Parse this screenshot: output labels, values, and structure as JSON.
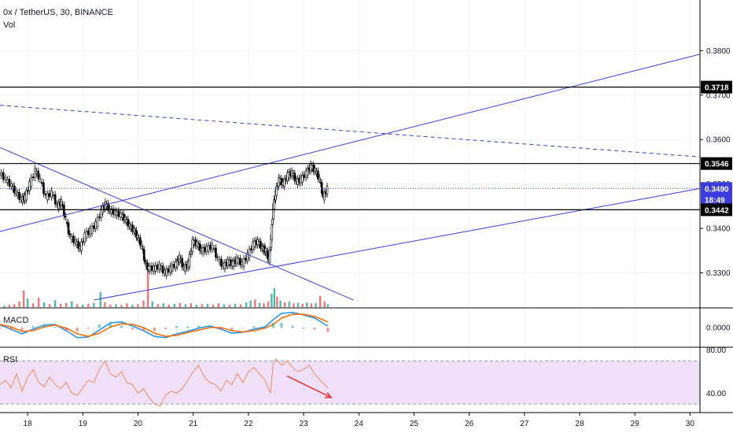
{
  "header": {
    "title": "0x / TetherUS, 30, BINANCE",
    "volume_label": "Vol"
  },
  "panes": {
    "macd_label": "MACD",
    "rsi_label": "RSI"
  },
  "colors": {
    "up": "#26a69a",
    "down": "#ef5350",
    "candle": "#000000",
    "trendline": "#3c3cdc",
    "macd_line": "#2196f3",
    "signal_line": "#ff6d00",
    "rsi_line": "#f08a5d",
    "rsi_band": "#efe0f7",
    "arrow": "#e53935",
    "grid": "#f0f3fa"
  },
  "chart_data": [
    {
      "type": "candlestick",
      "title": "0x / TetherUS, 30, BINANCE",
      "x_ticks": [
        "18",
        "19",
        "20",
        "21",
        "22",
        "23",
        "24",
        "25",
        "26",
        "27",
        "28",
        "29",
        "30"
      ],
      "x_range": [
        17.5,
        30.18
      ],
      "y_ticks": [
        "0.3300",
        "0.3400",
        "0.3500",
        "0.3600",
        "0.3700",
        "0.3800"
      ],
      "ylim": [
        0.3223,
        0.3914
      ],
      "grid": true,
      "price_marks": [
        {
          "label": "0.3718",
          "value": 0.3718,
          "style": "horizontal-line"
        },
        {
          "label": "0.3546",
          "value": 0.3546,
          "style": "horizontal-line"
        },
        {
          "label": "0.3490",
          "value": 0.349,
          "style": "last-price"
        },
        {
          "label": "18:49",
          "value": 0.3465,
          "style": "countdown"
        },
        {
          "label": "0.3442",
          "value": 0.3442,
          "style": "horizontal-line"
        }
      ],
      "close_series": [
        {
          "x": 17.5,
          "y": 0.3525
        },
        {
          "x": 17.62,
          "y": 0.351
        },
        {
          "x": 17.72,
          "y": 0.3495
        },
        {
          "x": 17.8,
          "y": 0.348
        },
        {
          "x": 17.9,
          "y": 0.3465
        },
        {
          "x": 17.96,
          "y": 0.347
        },
        {
          "x": 18.05,
          "y": 0.35
        },
        {
          "x": 18.15,
          "y": 0.353
        },
        {
          "x": 18.24,
          "y": 0.351
        },
        {
          "x": 18.34,
          "y": 0.347
        },
        {
          "x": 18.45,
          "y": 0.348
        },
        {
          "x": 18.55,
          "y": 0.345
        },
        {
          "x": 18.62,
          "y": 0.346
        },
        {
          "x": 18.7,
          "y": 0.342
        },
        {
          "x": 18.78,
          "y": 0.338
        },
        {
          "x": 18.88,
          "y": 0.337
        },
        {
          "x": 18.96,
          "y": 0.3355
        },
        {
          "x": 19.05,
          "y": 0.3385
        },
        {
          "x": 19.15,
          "y": 0.3395
        },
        {
          "x": 19.25,
          "y": 0.341
        },
        {
          "x": 19.35,
          "y": 0.344
        },
        {
          "x": 19.42,
          "y": 0.3455
        },
        {
          "x": 19.5,
          "y": 0.344
        },
        {
          "x": 19.6,
          "y": 0.3435
        },
        {
          "x": 19.7,
          "y": 0.343
        },
        {
          "x": 19.78,
          "y": 0.342
        },
        {
          "x": 19.86,
          "y": 0.3405
        },
        {
          "x": 19.94,
          "y": 0.3395
        },
        {
          "x": 20.0,
          "y": 0.338
        },
        {
          "x": 20.08,
          "y": 0.336
        },
        {
          "x": 20.14,
          "y": 0.332
        },
        {
          "x": 20.2,
          "y": 0.331
        },
        {
          "x": 20.3,
          "y": 0.331
        },
        {
          "x": 20.4,
          "y": 0.3315
        },
        {
          "x": 20.5,
          "y": 0.33
        },
        {
          "x": 20.6,
          "y": 0.331
        },
        {
          "x": 20.7,
          "y": 0.332
        },
        {
          "x": 20.76,
          "y": 0.3335
        },
        {
          "x": 20.84,
          "y": 0.331
        },
        {
          "x": 20.92,
          "y": 0.332
        },
        {
          "x": 21.0,
          "y": 0.337
        },
        {
          "x": 21.08,
          "y": 0.3365
        },
        {
          "x": 21.16,
          "y": 0.335
        },
        {
          "x": 21.26,
          "y": 0.3355
        },
        {
          "x": 21.36,
          "y": 0.336
        },
        {
          "x": 21.46,
          "y": 0.333
        },
        {
          "x": 21.56,
          "y": 0.3315
        },
        {
          "x": 21.64,
          "y": 0.3325
        },
        {
          "x": 21.72,
          "y": 0.332
        },
        {
          "x": 21.8,
          "y": 0.333
        },
        {
          "x": 21.9,
          "y": 0.332
        },
        {
          "x": 22.0,
          "y": 0.334
        },
        {
          "x": 22.1,
          "y": 0.3365
        },
        {
          "x": 22.18,
          "y": 0.337
        },
        {
          "x": 22.26,
          "y": 0.3355
        },
        {
          "x": 22.32,
          "y": 0.335
        },
        {
          "x": 22.38,
          "y": 0.333
        },
        {
          "x": 22.42,
          "y": 0.338
        },
        {
          "x": 22.46,
          "y": 0.345
        },
        {
          "x": 22.5,
          "y": 0.348
        },
        {
          "x": 22.56,
          "y": 0.351
        },
        {
          "x": 22.64,
          "y": 0.35
        },
        {
          "x": 22.72,
          "y": 0.352
        },
        {
          "x": 22.8,
          "y": 0.3525
        },
        {
          "x": 22.88,
          "y": 0.3505
        },
        {
          "x": 22.96,
          "y": 0.351
        },
        {
          "x": 23.06,
          "y": 0.3525
        },
        {
          "x": 23.14,
          "y": 0.354
        },
        {
          "x": 23.22,
          "y": 0.353
        },
        {
          "x": 23.3,
          "y": 0.351
        },
        {
          "x": 23.36,
          "y": 0.347
        },
        {
          "x": 23.44,
          "y": 0.349
        }
      ],
      "volume_bars": [
        {
          "x": 17.58,
          "v": 3,
          "up": true
        },
        {
          "x": 17.67,
          "v": 5,
          "up": false
        },
        {
          "x": 17.76,
          "v": 6,
          "up": false
        },
        {
          "x": 17.85,
          "v": 12,
          "up": false
        },
        {
          "x": 17.93,
          "v": 35,
          "up": false
        },
        {
          "x": 18.0,
          "v": 18,
          "up": true
        },
        {
          "x": 18.1,
          "v": 8,
          "up": false
        },
        {
          "x": 18.2,
          "v": 20,
          "up": false
        },
        {
          "x": 18.3,
          "v": 10,
          "up": true
        },
        {
          "x": 18.4,
          "v": 6,
          "up": false
        },
        {
          "x": 18.5,
          "v": 15,
          "up": true
        },
        {
          "x": 18.6,
          "v": 7,
          "up": false
        },
        {
          "x": 18.7,
          "v": 9,
          "up": false
        },
        {
          "x": 18.8,
          "v": 12,
          "up": true
        },
        {
          "x": 18.9,
          "v": 6,
          "up": false
        },
        {
          "x": 19.0,
          "v": 5,
          "up": true
        },
        {
          "x": 19.1,
          "v": 7,
          "up": false
        },
        {
          "x": 19.2,
          "v": 9,
          "up": true
        },
        {
          "x": 19.32,
          "v": 32,
          "up": true
        },
        {
          "x": 19.4,
          "v": 10,
          "up": false
        },
        {
          "x": 19.5,
          "v": 5,
          "up": false
        },
        {
          "x": 19.6,
          "v": 6,
          "up": true
        },
        {
          "x": 19.7,
          "v": 4,
          "up": false
        },
        {
          "x": 19.8,
          "v": 8,
          "up": false
        },
        {
          "x": 19.9,
          "v": 5,
          "up": true
        },
        {
          "x": 20.0,
          "v": 6,
          "up": false
        },
        {
          "x": 20.1,
          "v": 14,
          "up": false
        },
        {
          "x": 20.18,
          "v": 72,
          "up": false
        },
        {
          "x": 20.26,
          "v": 12,
          "up": true
        },
        {
          "x": 20.36,
          "v": 6,
          "up": false
        },
        {
          "x": 20.46,
          "v": 8,
          "up": true
        },
        {
          "x": 20.56,
          "v": 5,
          "up": false
        },
        {
          "x": 20.66,
          "v": 7,
          "up": true
        },
        {
          "x": 20.76,
          "v": 9,
          "up": false
        },
        {
          "x": 20.86,
          "v": 6,
          "up": true
        },
        {
          "x": 20.96,
          "v": 8,
          "up": false
        },
        {
          "x": 21.06,
          "v": 5,
          "up": true
        },
        {
          "x": 21.16,
          "v": 6,
          "up": false
        },
        {
          "x": 21.26,
          "v": 7,
          "up": true
        },
        {
          "x": 21.36,
          "v": 5,
          "up": false
        },
        {
          "x": 21.46,
          "v": 8,
          "up": false
        },
        {
          "x": 21.56,
          "v": 6,
          "up": true
        },
        {
          "x": 21.66,
          "v": 5,
          "up": false
        },
        {
          "x": 21.76,
          "v": 7,
          "up": true
        },
        {
          "x": 21.86,
          "v": 6,
          "up": false
        },
        {
          "x": 21.96,
          "v": 10,
          "up": true
        },
        {
          "x": 22.04,
          "v": 14,
          "up": true
        },
        {
          "x": 22.12,
          "v": 16,
          "up": false
        },
        {
          "x": 22.2,
          "v": 9,
          "up": true
        },
        {
          "x": 22.28,
          "v": 8,
          "up": false
        },
        {
          "x": 22.36,
          "v": 12,
          "up": false
        },
        {
          "x": 22.42,
          "v": 28,
          "up": true
        },
        {
          "x": 22.47,
          "v": 40,
          "up": true
        },
        {
          "x": 22.52,
          "v": 22,
          "up": false
        },
        {
          "x": 22.58,
          "v": 14,
          "up": true
        },
        {
          "x": 22.66,
          "v": 10,
          "up": false
        },
        {
          "x": 22.74,
          "v": 12,
          "up": true
        },
        {
          "x": 22.82,
          "v": 8,
          "up": false
        },
        {
          "x": 22.9,
          "v": 9,
          "up": true
        },
        {
          "x": 22.98,
          "v": 7,
          "up": false
        },
        {
          "x": 23.06,
          "v": 10,
          "up": true
        },
        {
          "x": 23.14,
          "v": 8,
          "up": false
        },
        {
          "x": 23.22,
          "v": 9,
          "up": true
        },
        {
          "x": 23.3,
          "v": 24,
          "up": false
        },
        {
          "x": 23.38,
          "v": 12,
          "up": false
        },
        {
          "x": 23.44,
          "v": 6,
          "up": true
        }
      ],
      "trendlines": [
        {
          "name": "rising-upper",
          "from": {
            "x": 17.5,
            "y": 0.3393
          },
          "to": {
            "x": 30.18,
            "y": 0.3792
          },
          "style": "solid"
        },
        {
          "name": "rising-lower",
          "from": {
            "x": 19.2,
            "y": 0.3239
          },
          "to": {
            "x": 30.18,
            "y": 0.349
          },
          "style": "solid"
        },
        {
          "name": "falling",
          "from": {
            "x": 17.5,
            "y": 0.3582
          },
          "to": {
            "x": 23.9,
            "y": 0.3239
          },
          "style": "solid"
        },
        {
          "name": "falling-dashed",
          "from": {
            "x": 17.5,
            "y": 0.3677
          },
          "to": {
            "x": 30.18,
            "y": 0.3561
          },
          "style": "dashed"
        }
      ],
      "horizontal_lines": [
        0.3718,
        0.3546,
        0.3442
      ]
    },
    {
      "type": "line",
      "title": "MACD",
      "y_ticks": [
        "0.0000"
      ],
      "ylim": [
        -0.006,
        0.006
      ],
      "series": [
        {
          "values_x": [
            17.5,
            17.7,
            17.9,
            18.1,
            18.3,
            18.5,
            18.7,
            18.9,
            19.1,
            19.3,
            19.5,
            19.7,
            19.9,
            20.1,
            20.3,
            20.5,
            20.7,
            20.9,
            21.1,
            21.3,
            21.5,
            21.7,
            21.9,
            22.1,
            22.3,
            22.45,
            22.6,
            22.8,
            23.0,
            23.2,
            23.44
          ],
          "values_y": [
            0.0008,
            -0.0005,
            -0.002,
            -0.0005,
            0.0008,
            0.001,
            -0.001,
            -0.0032,
            -0.003,
            -0.0008,
            0.0015,
            0.0018,
            0.0005,
            -0.001,
            -0.0028,
            -0.0032,
            -0.002,
            -0.0012,
            -0.0002,
            0.0005,
            -0.0005,
            -0.0018,
            -0.0015,
            -0.0005,
            0.0002,
            0.0025,
            0.0045,
            0.0048,
            0.004,
            0.003,
            0.0005
          ]
        },
        {
          "values_x": [
            17.5,
            17.7,
            17.9,
            18.1,
            18.3,
            18.5,
            18.7,
            18.9,
            19.1,
            19.3,
            19.5,
            19.7,
            19.9,
            20.1,
            20.3,
            20.5,
            20.7,
            20.9,
            21.1,
            21.3,
            21.5,
            21.7,
            21.9,
            22.1,
            22.3,
            22.45,
            22.6,
            22.8,
            23.0,
            23.2,
            23.44
          ],
          "values_y": [
            0.001,
            0.0002,
            -0.0012,
            -0.001,
            0.0002,
            0.0008,
            -0.0002,
            -0.002,
            -0.0028,
            -0.0018,
            0.0002,
            0.0012,
            0.001,
            0.0,
            -0.0018,
            -0.0028,
            -0.0025,
            -0.0016,
            -0.0008,
            0.0,
            0.0,
            -0.001,
            -0.0014,
            -0.001,
            -0.0002,
            0.001,
            0.003,
            0.0042,
            0.0042,
            0.0035,
            0.0018
          ]
        }
      ]
    },
    {
      "type": "line",
      "title": "RSI",
      "y_ticks": [
        "80.00",
        "40.00"
      ],
      "ylim": [
        22,
        82
      ],
      "band": [
        70,
        30
      ],
      "series": [
        {
          "values_x": [
            17.5,
            17.6,
            17.7,
            17.8,
            17.9,
            18.0,
            18.1,
            18.2,
            18.3,
            18.4,
            18.5,
            18.6,
            18.7,
            18.8,
            18.9,
            19.0,
            19.1,
            19.2,
            19.3,
            19.4,
            19.5,
            19.6,
            19.7,
            19.8,
            19.9,
            20.0,
            20.1,
            20.2,
            20.3,
            20.4,
            20.5,
            20.6,
            20.7,
            20.8,
            20.9,
            21.0,
            21.1,
            21.2,
            21.3,
            21.4,
            21.5,
            21.6,
            21.7,
            21.8,
            21.9,
            22.0,
            22.1,
            22.2,
            22.3,
            22.4,
            22.45,
            22.5,
            22.6,
            22.7,
            22.8,
            22.9,
            23.0,
            23.1,
            23.2,
            23.3,
            23.44
          ],
          "values_y": [
            48,
            52,
            45,
            58,
            42,
            55,
            62,
            50,
            46,
            55,
            48,
            44,
            50,
            40,
            38,
            45,
            52,
            50,
            62,
            70,
            58,
            55,
            60,
            50,
            48,
            40,
            44,
            36,
            30,
            28,
            38,
            42,
            40,
            44,
            52,
            60,
            66,
            55,
            50,
            48,
            42,
            52,
            48,
            58,
            50,
            60,
            64,
            58,
            52,
            40,
            68,
            72,
            66,
            70,
            64,
            60,
            62,
            66,
            58,
            52,
            45
          ]
        }
      ],
      "arrow": {
        "from": {
          "x": 22.7,
          "y": 56
        },
        "to": {
          "x": 23.5,
          "y": 36
        }
      }
    }
  ]
}
